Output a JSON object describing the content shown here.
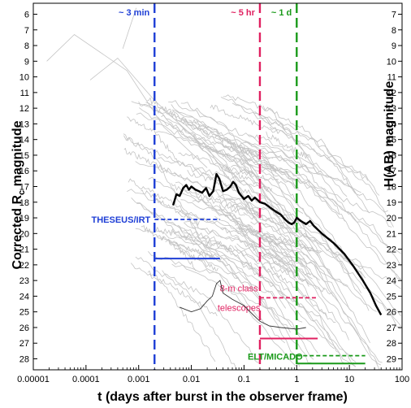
{
  "chart_data": {
    "type": "line",
    "xlabel": "t (days after burst in the observer frame)",
    "ylabel_left_prefix": "Corrected R",
    "ylabel_left_sub": "c",
    "ylabel_left_suffix": " magnitude",
    "ylabel_right": "H(AB) magnitude",
    "x_scale": "log",
    "xlim": [
      1e-05,
      100
    ],
    "ylim_left": [
      5.3,
      28.7
    ],
    "y_inverted": true,
    "ylim_right": [
      6.3,
      29.7
    ],
    "x_ticks": [
      {
        "v": 1e-05,
        "label": "0.00001"
      },
      {
        "v": 0.0001,
        "label": "0.0001"
      },
      {
        "v": 0.001,
        "label": "0.001"
      },
      {
        "v": 0.01,
        "label": "0.01"
      },
      {
        "v": 0.1,
        "label": "0.1"
      },
      {
        "v": 1,
        "label": "1"
      },
      {
        "v": 10,
        "label": "10"
      },
      {
        "v": 100,
        "label": "100"
      }
    ],
    "y_left_ticks": [
      "6",
      "7",
      "8",
      "9",
      "10",
      "11",
      "12",
      "13",
      "14",
      "15",
      "16",
      "17",
      "18",
      "19",
      "20",
      "21",
      "22",
      "23",
      "24",
      "25",
      "26",
      "27",
      "28"
    ],
    "y_right_ticks": [
      "7",
      "8",
      "9",
      "10",
      "11",
      "12",
      "13",
      "14",
      "15",
      "16",
      "17",
      "18",
      "19",
      "20",
      "21",
      "22",
      "23",
      "24",
      "25",
      "26",
      "27",
      "28",
      "29"
    ],
    "colors": {
      "blue": "#1f3fd6",
      "red": "#e02060",
      "green": "#1a9a1a",
      "grey": "#c4c4c4",
      "highlight": "#000000"
    },
    "vertical_markers": [
      {
        "label": "~ 3 min",
        "t": 0.002,
        "color": "#1f3fd6"
      },
      {
        "label": "~ 5 hr",
        "t": 0.2,
        "color": "#e02060"
      },
      {
        "label": "~ 1 d",
        "t": 1,
        "color": "#1a9a1a"
      }
    ],
    "instruments": [
      {
        "label": "THESEUS/IRT",
        "color": "#1f3fd6",
        "dashed": {
          "t0": 0.002,
          "t1": 0.035,
          "mag": 19.1
        },
        "solid": {
          "t0": 0.002,
          "t1": 0.035,
          "mag": 21.6
        }
      },
      {
        "label_lines": [
          "8-m class",
          "telescopes"
        ],
        "color": "#e02060",
        "dashed": {
          "t0": 0.2,
          "t1": 2.5,
          "mag": 24.1
        },
        "solid": {
          "t0": 0.2,
          "t1": 2.5,
          "mag": 26.7
        }
      },
      {
        "label": "ELT/MICADO",
        "color": "#1a9a1a",
        "dashed": {
          "t0": 1,
          "t1": 20,
          "mag": 27.8
        },
        "solid": {
          "t0": 1,
          "t1": 20,
          "mag": 28.3
        }
      }
    ],
    "highlight_curve": [
      [
        0.0045,
        18.2
      ],
      [
        0.0052,
        17.5
      ],
      [
        0.006,
        17.6
      ],
      [
        0.007,
        17.1
      ],
      [
        0.008,
        16.9
      ],
      [
        0.009,
        17.2
      ],
      [
        0.01,
        17.0
      ],
      [
        0.012,
        17.2
      ],
      [
        0.014,
        17.3
      ],
      [
        0.016,
        17.4
      ],
      [
        0.019,
        17.1
      ],
      [
        0.022,
        17.6
      ],
      [
        0.026,
        17.3
      ],
      [
        0.03,
        16.2
      ],
      [
        0.034,
        16.5
      ],
      [
        0.04,
        17.3
      ],
      [
        0.047,
        17.2
      ],
      [
        0.055,
        17.0
      ],
      [
        0.062,
        16.7
      ],
      [
        0.07,
        16.9
      ],
      [
        0.08,
        17.4
      ],
      [
        0.1,
        17.8
      ],
      [
        0.12,
        17.6
      ],
      [
        0.14,
        17.9
      ],
      [
        0.16,
        17.7
      ],
      [
        0.2,
        18.0
      ],
      [
        0.25,
        18.1
      ],
      [
        0.3,
        18.3
      ],
      [
        0.4,
        18.6
      ],
      [
        0.5,
        18.8
      ],
      [
        0.6,
        19.1
      ],
      [
        0.7,
        19.3
      ],
      [
        0.8,
        19.4
      ],
      [
        0.9,
        19.3
      ],
      [
        1.0,
        19.0
      ],
      [
        1.2,
        19.2
      ],
      [
        1.5,
        19.4
      ],
      [
        1.8,
        19.2
      ],
      [
        2.1,
        19.5
      ],
      [
        3.0,
        20.0
      ],
      [
        5.0,
        20.6
      ],
      [
        8.0,
        21.3
      ],
      [
        12.0,
        22.1
      ],
      [
        18.0,
        23.0
      ],
      [
        25.0,
        23.8
      ],
      [
        32.0,
        24.6
      ],
      [
        40.0,
        25.2
      ]
    ],
    "faint_curve": [
      [
        0.006,
        24.7
      ],
      [
        0.01,
        25.0
      ],
      [
        0.015,
        24.8
      ],
      [
        0.02,
        24.3
      ],
      [
        0.025,
        24.0
      ],
      [
        0.03,
        23.2
      ],
      [
        0.035,
        23.0
      ],
      [
        0.04,
        23.8
      ],
      [
        0.06,
        24.2
      ],
      [
        0.1,
        24.6
      ],
      [
        0.15,
        25.2
      ],
      [
        0.2,
        25.6
      ],
      [
        0.3,
        25.9
      ],
      [
        0.5,
        26.0
      ],
      [
        1,
        26.1
      ],
      [
        1.5,
        26.0
      ]
    ]
  }
}
